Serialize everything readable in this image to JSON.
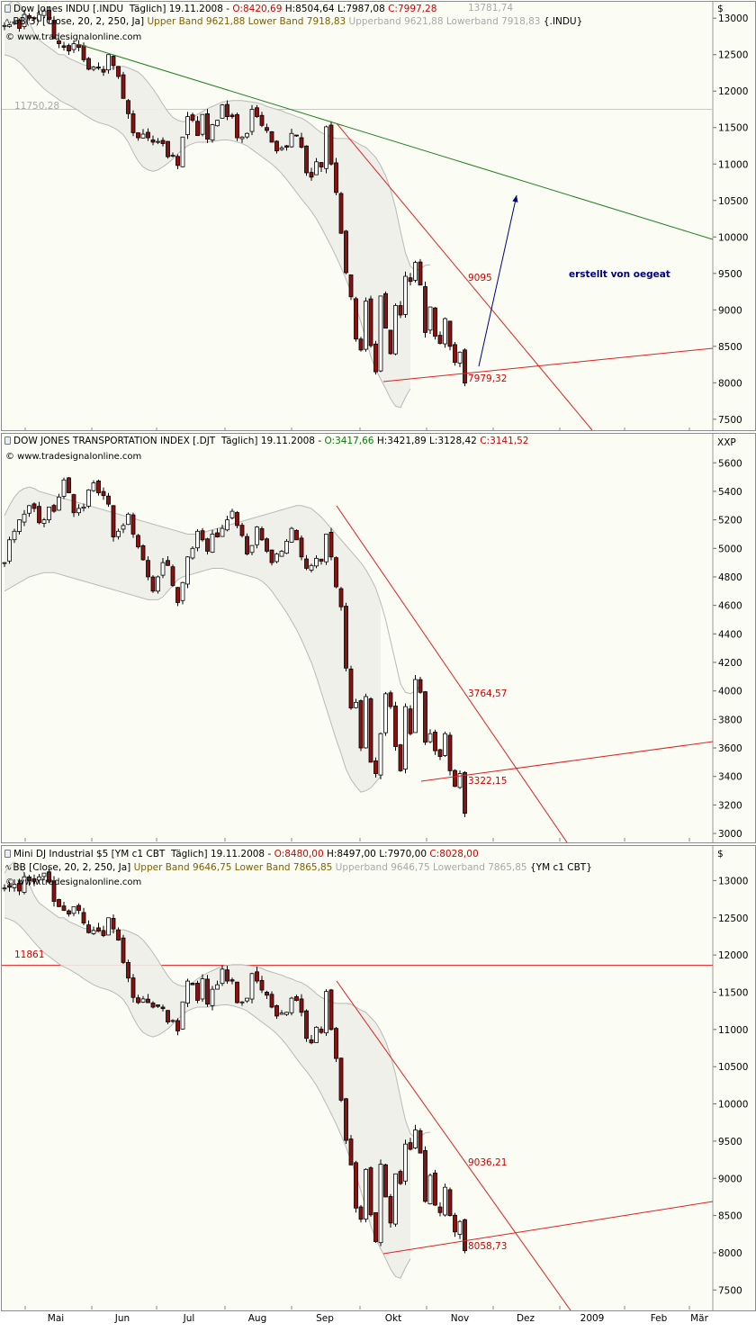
{
  "chart_data": [
    {
      "type": "candlestick",
      "header": {
        "symbol_line": "Dow Jones INDU [.INDU  Täglich] 19.11.2008",
        "open": "O:8420,69",
        "high": "H:8504,64",
        "low": "L:7987,08",
        "close": "C:7997,28",
        "bb_line": "BB(3) [Close, 20, 2, 250, Ja]",
        "upper_band": "Upper Band 9621,88",
        "lower_band": "Lower Band 7918,83",
        "upperband_grey": "Upperband 9621,88",
        "lowerband_grey": "Lowerband 7918,83",
        "bb_symbol": "{.INDU}"
      },
      "watermark": "© www.tradesignalonline.com",
      "unit": "$",
      "ylim": [
        7350,
        13200
      ],
      "yticks": [
        "7500",
        "8000",
        "8500",
        "9000",
        "9500",
        "10000",
        "10500",
        "11000",
        "11500",
        "12000",
        "12500",
        "13000"
      ],
      "annotations": {
        "upper_band_label": "13781,74",
        "hline_label": "11750,28",
        "down_trend_label": "9095",
        "low_label": "7979,32",
        "author_note": "erstellt von oegeat"
      },
      "hline_value": 11750.28,
      "candles": [
        12900,
        12910,
        12950,
        12860,
        13050,
        13000,
        12990,
        13050,
        13100,
        12980,
        12720,
        12650,
        12600,
        12550,
        12650,
        12600,
        12430,
        12300,
        12330,
        12320,
        12260,
        12500,
        12350,
        12200,
        11900,
        11690,
        11430,
        11360,
        11410,
        11360,
        11300,
        11310,
        11280,
        11100,
        11120,
        10980,
        11370,
        11650,
        11600,
        11390,
        11680,
        11340,
        11540,
        11600,
        11810,
        11650,
        11650,
        11360,
        11370,
        11420,
        11750,
        11650,
        11530,
        11460,
        11300,
        11180,
        11220,
        11230,
        11420,
        11390,
        11230,
        10880,
        10820,
        11030,
        10960,
        11510,
        11000,
        10610,
        10050,
        9510,
        9180,
        8600,
        8450,
        9120,
        8510,
        8150,
        9190,
        8750,
        8400,
        9060,
        8930,
        9460,
        9390,
        9650,
        9340,
        8690,
        9040,
        8640,
        8540,
        8880,
        8500,
        8280,
        8420,
        7997
      ],
      "upper_band": [
        13100,
        13200,
        13250,
        13200,
        13100,
        12950,
        12800,
        12700,
        12650,
        12600,
        12550,
        12500,
        12500,
        12450,
        12420,
        12390,
        12360,
        12350,
        12330,
        12300,
        12290,
        12300,
        12320,
        12330,
        12340,
        12320,
        12290,
        12260,
        12200,
        12120,
        12030,
        11930,
        11820,
        11720,
        11640,
        11600,
        11580,
        11590,
        11630,
        11680,
        11720,
        11760,
        11790,
        11820,
        11850,
        11860,
        11870,
        11870,
        11870,
        11860,
        11850,
        11840,
        11820,
        11790,
        11770,
        11750,
        11730,
        11700,
        11680,
        11650,
        11630,
        11590,
        11540,
        11480,
        11430,
        11400,
        11370,
        11350,
        11350,
        11350,
        11340,
        11300,
        11260,
        11230,
        11160,
        11090,
        10980,
        10840,
        10650,
        10400,
        10080,
        9780,
        9600,
        9540,
        9560,
        9610,
        9620
      ],
      "lower_band": [
        12500,
        12480,
        12450,
        12400,
        12330,
        12250,
        12170,
        12100,
        12030,
        11980,
        11930,
        11880,
        11840,
        11810,
        11770,
        11730,
        11680,
        11640,
        11600,
        11570,
        11550,
        11530,
        11500,
        11460,
        11400,
        11300,
        11160,
        11040,
        10960,
        10920,
        10900,
        10920,
        10960,
        11010,
        11070,
        11140,
        11200,
        11250,
        11280,
        11300,
        11300,
        11300,
        11310,
        11320,
        11330,
        11330,
        11320,
        11300,
        11280,
        11250,
        11200,
        11150,
        11100,
        11050,
        11000,
        10940,
        10870,
        10790,
        10700,
        10610,
        10520,
        10440,
        10350,
        10250,
        10130,
        10000,
        9870,
        9730,
        9580,
        9420,
        9240,
        9040,
        8830,
        8600,
        8360,
        8180,
        8050,
        7920,
        7780,
        7680,
        7660,
        7800,
        7920
      ]
    },
    {
      "type": "candlestick",
      "header": {
        "symbol_line": "DOW JONES TRANSPORTATION INDEX [.DJT  Täglich] 19.11.2008",
        "open": "O:3417,66",
        "high": "H:3421,89",
        "low": "L:3128,42",
        "close": "C:3141,52"
      },
      "watermark": "© www.tradesignalonline.com",
      "unit": "XXP",
      "ylim": [
        2950,
        5690
      ],
      "yticks": [
        "3000",
        "3200",
        "3400",
        "3600",
        "3800",
        "4000",
        "4200",
        "4400",
        "4600",
        "4800",
        "5000",
        "5200",
        "5400",
        "5600"
      ],
      "annotations": {
        "down_trend_label": "3764,57",
        "low_label": "3322,15"
      },
      "candles": [
        4900,
        5060,
        5120,
        5200,
        5240,
        5300,
        5280,
        5180,
        5200,
        5290,
        5260,
        5360,
        5480,
        5390,
        5250,
        5280,
        5290,
        5410,
        5460,
        5390,
        5370,
        5310,
        5080,
        5120,
        5160,
        5240,
        5100,
        5010,
        4920,
        4800,
        4700,
        4800,
        4900,
        4880,
        4740,
        4620,
        4760,
        4940,
        5000,
        5120,
        5060,
        4980,
        5100,
        5080,
        5140,
        5200,
        5260,
        5160,
        5090,
        4960,
        5020,
        5150,
        5060,
        4980,
        4900,
        4960,
        4980,
        5050,
        5140,
        5060,
        4940,
        4860,
        4880,
        4930,
        4910,
        5100,
        4940,
        4730,
        4590,
        4160,
        3880,
        3920,
        3600,
        3960,
        3500,
        3420,
        3700,
        3980,
        3890,
        3610,
        3440,
        3890,
        3700,
        4080,
        3990,
        3640,
        3700,
        3580,
        3540,
        3700,
        3440,
        3330,
        3420,
        3141
      ],
      "upper_band": [
        5230,
        5300,
        5360,
        5400,
        5420,
        5430,
        5420,
        5400,
        5390,
        5380,
        5370,
        5360,
        5350,
        5340,
        5330,
        5320,
        5310,
        5300,
        5290,
        5280,
        5270,
        5260,
        5250,
        5240,
        5230,
        5220,
        5210,
        5200,
        5190,
        5180,
        5170,
        5160,
        5150,
        5140,
        5130,
        5120,
        5110,
        5100,
        5100,
        5100,
        5110,
        5120,
        5130,
        5140,
        5150,
        5160,
        5170,
        5180,
        5190,
        5200,
        5210,
        5220,
        5230,
        5240,
        5250,
        5260,
        5270,
        5280,
        5290,
        5300,
        5300,
        5290,
        5280,
        5250,
        5220,
        5180,
        5140,
        5100,
        5060,
        5020,
        4980,
        4940,
        4900,
        4850,
        4790,
        4720,
        4620,
        4500,
        4350,
        4200,
        4050,
        3990,
        3980,
        4000,
        4040
      ],
      "lower_band": [
        4700,
        4720,
        4740,
        4760,
        4780,
        4800,
        4810,
        4820,
        4830,
        4830,
        4830,
        4820,
        4810,
        4800,
        4790,
        4780,
        4770,
        4760,
        4750,
        4740,
        4730,
        4720,
        4710,
        4700,
        4690,
        4680,
        4670,
        4660,
        4650,
        4640,
        4640,
        4640,
        4660,
        4700,
        4740,
        4780,
        4800,
        4810,
        4820,
        4830,
        4840,
        4850,
        4860,
        4860,
        4860,
        4850,
        4840,
        4830,
        4820,
        4810,
        4800,
        4790,
        4770,
        4740,
        4700,
        4650,
        4600,
        4550,
        4490,
        4430,
        4360,
        4280,
        4200,
        4100,
        3990,
        3880,
        3770,
        3660,
        3560,
        3450,
        3380,
        3330,
        3290,
        3300,
        3320,
        3360,
        3400
      ]
    },
    {
      "type": "candlestick",
      "header": {
        "symbol_line": "Mini DJ Industrial $5 [YM c1 CBT  Täglich] 19.11.2008",
        "open": "O:8480,00",
        "high": "H:8497,00",
        "low": "L:7970,00",
        "close": "C:8028,00",
        "bb_line": "BB [Close, 20, 2, 250, Ja]",
        "upper_band": "Upper Band 9646,75",
        "lower_band": "Lower Band 7865,85",
        "upperband_grey": "Upperband 9646,75",
        "lowerband_grey": "Lowerband 7865,85",
        "bb_symbol": "{YM c1 CBT}"
      },
      "watermark": "© www.tradesignalonline.com",
      "unit": "$",
      "ylim": [
        7250,
        13150
      ],
      "yticks": [
        "7500",
        "8000",
        "8500",
        "9000",
        "9500",
        "10000",
        "10500",
        "11000",
        "11500",
        "12000",
        "12500",
        "13000"
      ],
      "annotations": {
        "hline_label": "11861",
        "down_trend_label": "9036,21",
        "low_label": "8058,73"
      },
      "hline_value": 11861,
      "candles": [
        12900,
        12910,
        12950,
        12860,
        13050,
        13000,
        12990,
        13050,
        13100,
        12980,
        12720,
        12650,
        12600,
        12550,
        12650,
        12600,
        12430,
        12300,
        12330,
        12320,
        12260,
        12500,
        12350,
        12200,
        11900,
        11690,
        11430,
        11360,
        11410,
        11360,
        11300,
        11310,
        11280,
        11100,
        11120,
        10980,
        11370,
        11650,
        11600,
        11390,
        11680,
        11340,
        11540,
        11600,
        11810,
        11650,
        11650,
        11360,
        11370,
        11420,
        11750,
        11650,
        11530,
        11460,
        11300,
        11180,
        11220,
        11230,
        11420,
        11390,
        11230,
        10880,
        10820,
        11030,
        10960,
        11510,
        11000,
        10610,
        10050,
        9510,
        9180,
        8600,
        8450,
        9120,
        8510,
        8150,
        9190,
        8750,
        8400,
        9060,
        8930,
        9460,
        9390,
        9650,
        9340,
        8690,
        9040,
        8640,
        8540,
        8880,
        8500,
        8280,
        8420,
        8028
      ],
      "upper_band": [
        13100,
        13200,
        13250,
        13200,
        13100,
        12950,
        12800,
        12700,
        12650,
        12600,
        12550,
        12500,
        12500,
        12450,
        12420,
        12390,
        12360,
        12350,
        12330,
        12300,
        12290,
        12300,
        12320,
        12330,
        12340,
        12320,
        12290,
        12260,
        12200,
        12120,
        12030,
        11930,
        11820,
        11720,
        11640,
        11600,
        11580,
        11590,
        11630,
        11680,
        11720,
        11760,
        11790,
        11820,
        11850,
        11860,
        11870,
        11870,
        11870,
        11860,
        11850,
        11840,
        11820,
        11790,
        11770,
        11750,
        11730,
        11700,
        11680,
        11650,
        11630,
        11590,
        11540,
        11480,
        11430,
        11400,
        11370,
        11350,
        11350,
        11350,
        11340,
        11300,
        11260,
        11230,
        11160,
        11090,
        10980,
        10840,
        10650,
        10400,
        10080,
        9780,
        9600,
        9540,
        9560,
        9610,
        9620
      ],
      "lower_band": [
        12500,
        12480,
        12450,
        12400,
        12330,
        12250,
        12170,
        12100,
        12030,
        11980,
        11930,
        11880,
        11840,
        11810,
        11770,
        11730,
        11680,
        11640,
        11600,
        11570,
        11550,
        11530,
        11500,
        11460,
        11400,
        11300,
        11160,
        11040,
        10960,
        10920,
        10900,
        10920,
        10960,
        11010,
        11070,
        11140,
        11200,
        11250,
        11280,
        11300,
        11300,
        11300,
        11310,
        11320,
        11330,
        11330,
        11320,
        11300,
        11280,
        11250,
        11200,
        11150,
        11100,
        11050,
        11000,
        10940,
        10870,
        10790,
        10700,
        10610,
        10520,
        10440,
        10350,
        10250,
        10130,
        10000,
        9870,
        9730,
        9580,
        9420,
        9240,
        9040,
        8830,
        8600,
        8360,
        8180,
        8050,
        7920,
        7780,
        7680,
        7660,
        7800,
        7920
      ]
    }
  ],
  "xaxis": {
    "labels": [
      "Mai",
      "Jun",
      "Jul",
      "Aug",
      "Sep",
      "Okt",
      "Nov",
      "Dez",
      "2009",
      "Feb",
      "Mär"
    ]
  },
  "colors": {
    "candle_up": "#ffffff",
    "candle_down": "#8b1010",
    "band_fill": "#eeeeea",
    "band_line": "#b8b8b8",
    "trend_red": "#e02020",
    "trend_green": "#208020",
    "arrow_blue": "#000080"
  }
}
